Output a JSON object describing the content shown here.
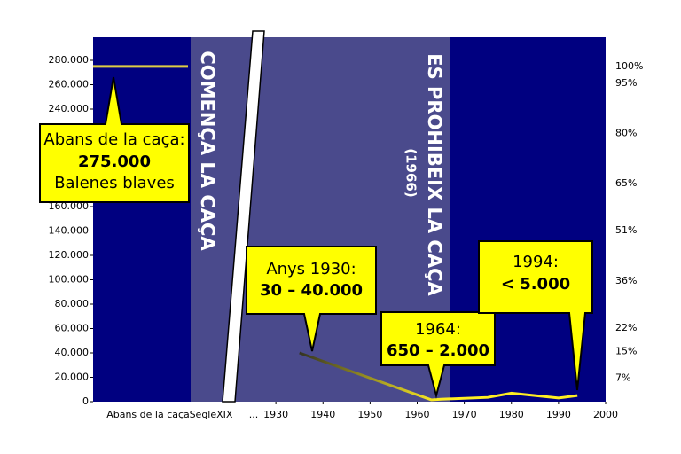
{
  "chart_data": {
    "type": "line",
    "pre_hunting_value": 275000,
    "x_category_labels": [
      "Abans de la caça",
      "SegleXIX",
      "..."
    ],
    "x": [
      1935,
      1963,
      1965,
      1975,
      1980,
      1985,
      1990,
      1994
    ],
    "series": [
      {
        "color": "#ffee22",
        "values": [
          40000,
          1500,
          2000,
          3500,
          7000,
          5000,
          3000,
          5000
        ]
      }
    ],
    "xlim": [
      1891.2,
      2000
    ],
    "xticks": [
      1930,
      1940,
      1950,
      1960,
      1970,
      1980,
      1990,
      2000
    ],
    "ylim": [
      0,
      280000
    ],
    "yticks": [
      0,
      {
        "value": 20000,
        "label": "20.000"
      },
      {
        "value": 40000,
        "label": "40.000"
      },
      {
        "value": 60000,
        "label": "60.000"
      },
      {
        "value": 80000,
        "label": "80.000"
      },
      {
        "value": 100000,
        "label": "100.000"
      },
      {
        "value": 120000,
        "label": "120.000"
      },
      {
        "value": 140000,
        "label": "140.000"
      },
      {
        "value": 160000,
        "label": "160.000"
      },
      {
        "value": 180000,
        "label": "180.000"
      },
      {
        "value": 200000,
        "label": "200.000"
      },
      {
        "value": 220000,
        "label": "220.000"
      },
      {
        "value": 240000,
        "label": "240.000"
      },
      {
        "value": 260000,
        "label": "260.000"
      },
      {
        "value": 280000,
        "label": "280.000"
      }
    ],
    "y2lim": [
      0,
      101.82
    ],
    "y2ticks": [
      {
        "value": 100,
        "label": "100%"
      },
      {
        "value": 95,
        "label": "95%"
      },
      {
        "value": 80,
        "label": "80%"
      },
      {
        "value": 65,
        "label": "65%"
      },
      {
        "value": 51,
        "label": "51%"
      },
      {
        "value": 36,
        "label": "36%"
      },
      {
        "value": 22,
        "label": "22%"
      },
      {
        "value": 15,
        "label": "15%"
      },
      {
        "value": 7,
        "label": "7%"
      }
    ],
    "hunting_start_label": "COMENÇA LA CAÇA",
    "ban_label": "ES PROHIBEIX LA CAÇA",
    "ban_year_label": "(1966)",
    "annotations": [
      {
        "heading": "Abans de la caça:",
        "value": "275.000",
        "note": "Balenes blaves"
      },
      {
        "heading": "Anys 1930:",
        "value": "30 – 40.000"
      },
      {
        "heading": "1964:",
        "value": "650 – 2.000"
      },
      {
        "heading": "1994:",
        "value": "< 5.000"
      }
    ]
  }
}
